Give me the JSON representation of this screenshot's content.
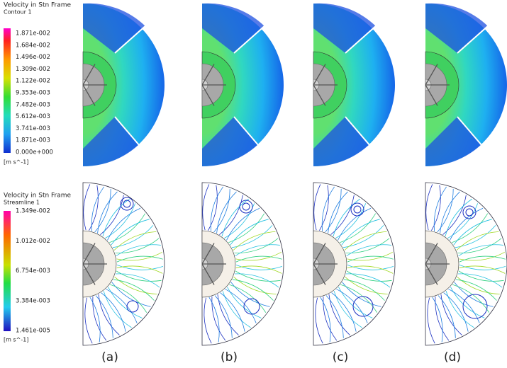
{
  "contour_legend": {
    "title": "Velocity in Stn Frame",
    "subtitle": "Contour 1",
    "labels": [
      "1.871e-002",
      "1.684e-002",
      "1.496e-002",
      "1.309e-002",
      "1.122e-002",
      "9.353e-003",
      "7.482e-003",
      "5.612e-003",
      "3.741e-003",
      "1.871e-003",
      "0.000e+000"
    ],
    "unit": "[m s^-1]"
  },
  "streamline_legend": {
    "title": "Velocity in Stn Frame",
    "subtitle": "Streamline 1",
    "labels": [
      "1.349e-002",
      "1.012e-002",
      "6.754e-003",
      "3.384e-003",
      "1.461e-005"
    ],
    "unit": "[m s^-1]"
  },
  "panels": [
    "(a)",
    "(b)",
    "(c)",
    "(d)"
  ]
}
